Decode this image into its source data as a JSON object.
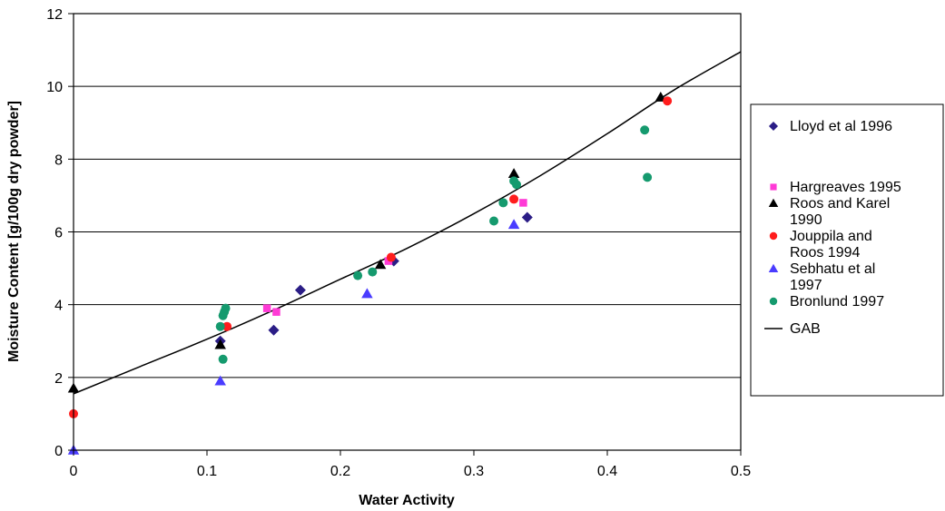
{
  "chart_data": {
    "type": "scatter",
    "xlabel": "Water Activity",
    "ylabel": "Moisture Content [g/100g dry powder]",
    "xlim": [
      0,
      0.5
    ],
    "ylim": [
      0,
      12
    ],
    "xticks": [
      "0",
      "0.1",
      "0.2",
      "0.3",
      "0.4",
      "0.5"
    ],
    "yticks": [
      "0",
      "2",
      "4",
      "6",
      "8",
      "10",
      "12"
    ],
    "grid": "horizontal",
    "legend_position": "right",
    "series": [
      {
        "name": "Lloyd et al 1996",
        "marker": "diamond",
        "color": "#2b1d86",
        "points": [
          [
            0.11,
            3.0
          ],
          [
            0.15,
            3.3
          ],
          [
            0.17,
            4.4
          ],
          [
            0.24,
            5.2
          ],
          [
            0.34,
            6.4
          ]
        ]
      },
      {
        "name": "Hargreaves 1995",
        "marker": "square",
        "color": "#ff3ad6",
        "points": [
          [
            0.145,
            3.9
          ],
          [
            0.152,
            3.8
          ],
          [
            0.236,
            5.2
          ],
          [
            0.337,
            6.8
          ]
        ]
      },
      {
        "name": "Roos and Karel 1990",
        "marker": "triangle",
        "color": "#000000",
        "points": [
          [
            0.0,
            1.7
          ],
          [
            0.11,
            2.9
          ],
          [
            0.23,
            5.1
          ],
          [
            0.33,
            7.6
          ],
          [
            0.44,
            9.7
          ]
        ]
      },
      {
        "name": "Jouppila and Roos 1994",
        "marker": "circle",
        "color": "#ff1d1d",
        "points": [
          [
            0.0,
            1.0
          ],
          [
            0.115,
            3.4
          ],
          [
            0.238,
            5.3
          ],
          [
            0.33,
            6.9
          ],
          [
            0.445,
            9.6
          ]
        ]
      },
      {
        "name": "Sebhatu et al 1997",
        "marker": "triangle",
        "color": "#4a3cff",
        "points": [
          [
            0.0,
            0.0
          ],
          [
            0.11,
            1.9
          ],
          [
            0.22,
            4.3
          ],
          [
            0.33,
            6.2
          ]
        ]
      },
      {
        "name": "Bronlund 1997",
        "marker": "circle",
        "color": "#159a6e",
        "points": [
          [
            0.11,
            3.4
          ],
          [
            0.112,
            2.5
          ],
          [
            0.112,
            3.7
          ],
          [
            0.113,
            3.8
          ],
          [
            0.114,
            3.9
          ],
          [
            0.213,
            4.8
          ],
          [
            0.224,
            4.9
          ],
          [
            0.315,
            6.3
          ],
          [
            0.322,
            6.8
          ],
          [
            0.33,
            7.4
          ],
          [
            0.332,
            7.3
          ],
          [
            0.428,
            8.8
          ],
          [
            0.43,
            7.5
          ]
        ]
      },
      {
        "name": "GAB",
        "marker": "line",
        "color": "#000000",
        "points": [
          [
            0.0,
            1.55
          ],
          [
            0.05,
            2.3
          ],
          [
            0.1,
            3.05
          ],
          [
            0.15,
            3.85
          ],
          [
            0.2,
            4.7
          ],
          [
            0.25,
            5.55
          ],
          [
            0.3,
            6.5
          ],
          [
            0.35,
            7.55
          ],
          [
            0.4,
            8.7
          ],
          [
            0.45,
            9.9
          ],
          [
            0.5,
            10.95
          ]
        ]
      }
    ]
  }
}
